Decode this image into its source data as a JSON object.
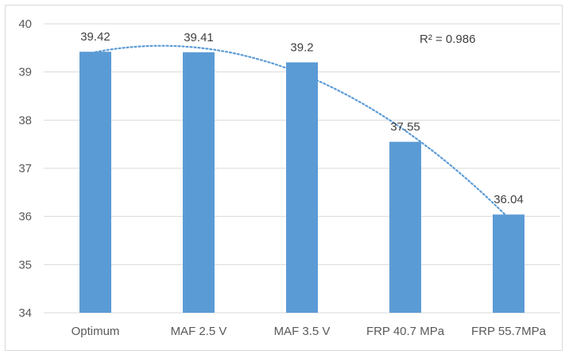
{
  "chart_data": {
    "type": "bar",
    "categories": [
      "Optimum",
      "MAF 2.5 V",
      "MAF 3.5 V",
      "FRP 40.7 MPa",
      "FRP 55.7MPa"
    ],
    "values": [
      39.42,
      39.41,
      39.2,
      37.55,
      36.04
    ],
    "data_labels": [
      "39.42",
      "39.41",
      "39.2",
      "37.55",
      "36.04"
    ],
    "ylim": [
      34,
      40
    ],
    "yticks": [
      34,
      35,
      36,
      37,
      38,
      39,
      40
    ],
    "title": "",
    "xlabel": "",
    "ylabel": "",
    "grid": true,
    "bar_color": "#5b9bd5",
    "trendline": {
      "type": "polynomial",
      "order": 2,
      "style": "dotted",
      "color": "#5b9bd5",
      "r_squared_label": "R² = 0.986"
    }
  }
}
